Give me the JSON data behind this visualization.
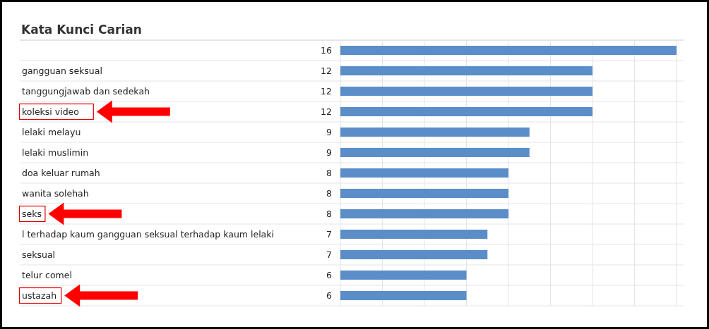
{
  "chart_data": {
    "type": "bar",
    "orientation": "horizontal",
    "title": "Kata Kunci Carian",
    "categories": [
      null,
      "gangguan seksual",
      "tanggungjawab dan sedekah",
      "koleksi video",
      "lelaki melayu",
      "lelaki muslimin",
      "doa keluar rumah",
      "wanita solehah",
      "seks",
      "l terhadap kaum gangguan seksual terhadap kaum lelaki",
      "seksual",
      "telur comel",
      "ustazah"
    ],
    "values": [
      16,
      12,
      12,
      12,
      9,
      9,
      8,
      8,
      8,
      7,
      7,
      6,
      6
    ],
    "color": "#5b8ec9",
    "data_labels": true,
    "xlim": [
      0,
      16.3
    ],
    "xticks": [
      {
        "value": 0,
        "label": null
      },
      {
        "value": 2,
        "label": null
      },
      {
        "value": 4,
        "label": null
      },
      {
        "value": 6,
        "label": null
      },
      {
        "value": 8,
        "label": null
      },
      {
        "value": 10,
        "label": null
      },
      {
        "value": 12,
        "label": null
      },
      {
        "value": 14,
        "label": null
      },
      {
        "value": 16,
        "label": null
      }
    ],
    "grid": "x"
  }
}
